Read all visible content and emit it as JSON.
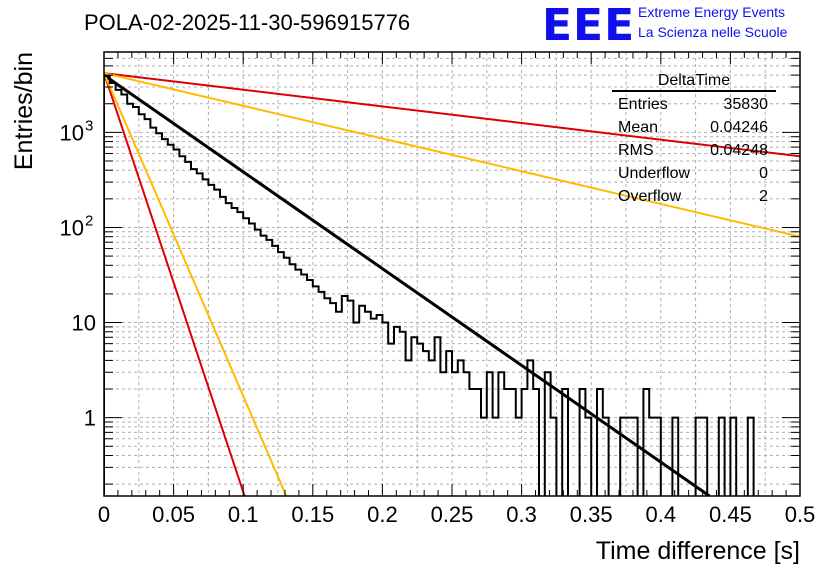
{
  "header": {
    "title": "POLA-02-2025-11-30-596915776",
    "logo_text": "EEE",
    "logo_line1": "Extreme Energy Events",
    "logo_line2": "La Scienza nelle Scuole",
    "logo_color": "#1010ee"
  },
  "stats": {
    "name": "DeltaTime",
    "rows": [
      {
        "label": "Entries",
        "value": "35830"
      },
      {
        "label": "Mean",
        "value": "0.04246"
      },
      {
        "label": "RMS",
        "value": "0.04248"
      },
      {
        "label": "Underflow",
        "value": "0"
      },
      {
        "label": "Overflow",
        "value": "2"
      }
    ]
  },
  "chart_data": {
    "type": "histogram",
    "title": "POLA-02-2025-11-30-596915776",
    "xlabel": "Time difference [s]",
    "ylabel": "Entries/bin",
    "xlim": [
      0,
      0.5
    ],
    "ylim": [
      0.15,
      7000
    ],
    "yscale": "log",
    "grid": true,
    "xticks": [
      "0",
      "0.05",
      "0.1",
      "0.15",
      "0.2",
      "0.25",
      "0.3",
      "0.35",
      "0.4",
      "0.45",
      "0.5"
    ],
    "yticks": [
      {
        "label": "1",
        "value": 1
      },
      {
        "label": "10",
        "value": 10
      },
      {
        "label": "10",
        "sup": "2",
        "value": 100
      },
      {
        "label": "10",
        "sup": "3",
        "value": 1000
      }
    ],
    "bin_width": 0.0041667,
    "bin_contents": [
      3900,
      3300,
      2800,
      2500,
      2000,
      1850,
      1550,
      1380,
      1120,
      980,
      850,
      740,
      660,
      560,
      490,
      410,
      370,
      320,
      280,
      250,
      210,
      180,
      160,
      145,
      125,
      110,
      95,
      82,
      74,
      64,
      55,
      48,
      41,
      36,
      32,
      28,
      24,
      21,
      18,
      16,
      13,
      19,
      17,
      10,
      15,
      13,
      11,
      12,
      10,
      6,
      9,
      8,
      4,
      7,
      6,
      5,
      4,
      7,
      3,
      5,
      3,
      4,
      3,
      2,
      2,
      1,
      3,
      1,
      3,
      2,
      2,
      1,
      2,
      4,
      2,
      0,
      3,
      1,
      0,
      2,
      0,
      0,
      2,
      1,
      0,
      2,
      1,
      0,
      0,
      1,
      1,
      1,
      0,
      2,
      1,
      1,
      0,
      0,
      1,
      0,
      0,
      0,
      1,
      1,
      0,
      0,
      1,
      0,
      1,
      0,
      0,
      1,
      0,
      0,
      0,
      0,
      0,
      0,
      0,
      0
    ],
    "series": [
      {
        "name": "fit",
        "color": "#000000",
        "width": 3,
        "points": [
          [
            0,
            4000
          ],
          [
            0.435,
            0.15
          ]
        ]
      },
      {
        "name": "red-slow",
        "color": "#dd0000",
        "width": 2,
        "points": [
          [
            0,
            4200
          ],
          [
            0.5,
            560
          ]
        ]
      },
      {
        "name": "orange-slow",
        "color": "#ffbb00",
        "width": 2,
        "points": [
          [
            0,
            4200
          ],
          [
            0.5,
            80
          ]
        ]
      },
      {
        "name": "red-fast",
        "color": "#dd0000",
        "width": 2,
        "points": [
          [
            0,
            4200
          ],
          [
            0.101,
            0.15
          ]
        ]
      },
      {
        "name": "orange-fast",
        "color": "#ffbb00",
        "width": 2,
        "points": [
          [
            0,
            4200
          ],
          [
            0.131,
            0.15
          ]
        ]
      }
    ]
  }
}
